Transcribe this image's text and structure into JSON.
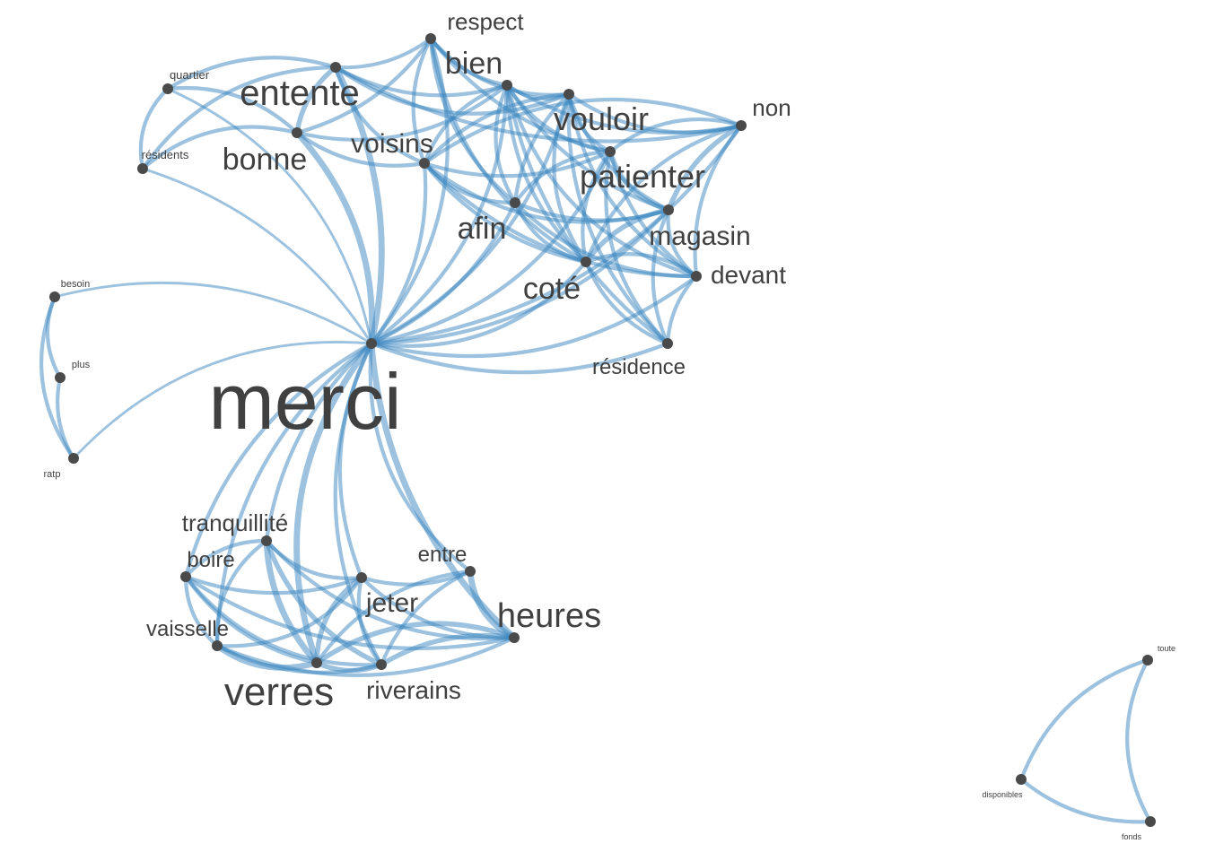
{
  "colors": {
    "edge": "#3a86c0",
    "node": "#4a4a4a",
    "label": "#404040",
    "background": "#ffffff"
  },
  "graph": {
    "nodes": [
      {
        "id": "merci",
        "label": "merci"
      },
      {
        "id": "respect",
        "label": "respect"
      },
      {
        "id": "bien",
        "label": "bien"
      },
      {
        "id": "entente",
        "label": "entente"
      },
      {
        "id": "quartier",
        "label": "quartier"
      },
      {
        "id": "vouloir",
        "label": "vouloir"
      },
      {
        "id": "non",
        "label": "non"
      },
      {
        "id": "bonne",
        "label": "bonne"
      },
      {
        "id": "voisins",
        "label": "voisins"
      },
      {
        "id": "residents",
        "label": "résidents"
      },
      {
        "id": "patienter",
        "label": "patienter"
      },
      {
        "id": "afin",
        "label": "afin"
      },
      {
        "id": "magasin",
        "label": "magasin"
      },
      {
        "id": "devant",
        "label": "devant"
      },
      {
        "id": "cote",
        "label": "coté"
      },
      {
        "id": "residence",
        "label": "résidence"
      },
      {
        "id": "besoin",
        "label": "besoin"
      },
      {
        "id": "plus",
        "label": "plus"
      },
      {
        "id": "ratp",
        "label": "ratp"
      },
      {
        "id": "tranquillite",
        "label": "tranquillité"
      },
      {
        "id": "boire",
        "label": "boire"
      },
      {
        "id": "entre",
        "label": "entre"
      },
      {
        "id": "jeter",
        "label": "jeter"
      },
      {
        "id": "heures",
        "label": "heures"
      },
      {
        "id": "vaisselle",
        "label": "vaisselle"
      },
      {
        "id": "verres",
        "label": "verres"
      },
      {
        "id": "riverains",
        "label": "riverains"
      },
      {
        "id": "toute",
        "label": "toute"
      },
      {
        "id": "disponibles",
        "label": "disponibles"
      },
      {
        "id": "fonds",
        "label": "fonds"
      }
    ],
    "edges": [
      {
        "source": "merci",
        "target": "entente",
        "weight": 4
      },
      {
        "source": "merci",
        "target": "bonne",
        "weight": 4
      },
      {
        "source": "merci",
        "target": "bien",
        "weight": 2
      },
      {
        "source": "merci",
        "target": "respect",
        "weight": 2
      },
      {
        "source": "merci",
        "target": "voisins",
        "weight": 2
      },
      {
        "source": "merci",
        "target": "vouloir",
        "weight": 2
      },
      {
        "source": "merci",
        "target": "patienter",
        "weight": 2
      },
      {
        "source": "merci",
        "target": "afin",
        "weight": 2
      },
      {
        "source": "merci",
        "target": "magasin",
        "weight": 2
      },
      {
        "source": "merci",
        "target": "devant",
        "weight": 2
      },
      {
        "source": "merci",
        "target": "cote",
        "weight": 2
      },
      {
        "source": "merci",
        "target": "residence",
        "weight": 2
      },
      {
        "source": "merci",
        "target": "non",
        "weight": 2
      },
      {
        "source": "merci",
        "target": "quartier",
        "weight": 1
      },
      {
        "source": "merci",
        "target": "residents",
        "weight": 1
      },
      {
        "source": "merci",
        "target": "besoin",
        "weight": 1
      },
      {
        "source": "merci",
        "target": "ratp",
        "weight": 1
      },
      {
        "source": "merci",
        "target": "verres",
        "weight": 4
      },
      {
        "source": "merci",
        "target": "heures",
        "weight": 4
      },
      {
        "source": "merci",
        "target": "jeter",
        "weight": 2
      },
      {
        "source": "merci",
        "target": "riverains",
        "weight": 2
      },
      {
        "source": "merci",
        "target": "tranquillite",
        "weight": 2
      },
      {
        "source": "merci",
        "target": "boire",
        "weight": 2
      },
      {
        "source": "merci",
        "target": "vaisselle",
        "weight": 2
      },
      {
        "source": "merci",
        "target": "entre",
        "weight": 2
      },
      {
        "source": "entente",
        "target": "bonne",
        "weight": 3
      },
      {
        "source": "entente",
        "target": "quartier",
        "weight": 2
      },
      {
        "source": "entente",
        "target": "residents",
        "weight": 2
      },
      {
        "source": "entente",
        "target": "respect",
        "weight": 2
      },
      {
        "source": "entente",
        "target": "bien",
        "weight": 2
      },
      {
        "source": "entente",
        "target": "voisins",
        "weight": 2
      },
      {
        "source": "entente",
        "target": "vouloir",
        "weight": 2
      },
      {
        "source": "entente",
        "target": "non",
        "weight": 2
      },
      {
        "source": "bonne",
        "target": "quartier",
        "weight": 2
      },
      {
        "source": "bonne",
        "target": "residents",
        "weight": 2
      },
      {
        "source": "bonne",
        "target": "respect",
        "weight": 2
      },
      {
        "source": "bonne",
        "target": "voisins",
        "weight": 2
      },
      {
        "source": "bonne",
        "target": "bien",
        "weight": 2
      },
      {
        "source": "quartier",
        "target": "residents",
        "weight": 2
      },
      {
        "source": "respect",
        "target": "bien",
        "weight": 2
      },
      {
        "source": "respect",
        "target": "voisins",
        "weight": 2
      },
      {
        "source": "respect",
        "target": "vouloir",
        "weight": 2
      },
      {
        "source": "respect",
        "target": "patienter",
        "weight": 2
      },
      {
        "source": "respect",
        "target": "afin",
        "weight": 2
      },
      {
        "source": "respect",
        "target": "cote",
        "weight": 2
      },
      {
        "source": "bien",
        "target": "vouloir",
        "weight": 2
      },
      {
        "source": "bien",
        "target": "non",
        "weight": 2
      },
      {
        "source": "bien",
        "target": "patienter",
        "weight": 2
      },
      {
        "source": "bien",
        "target": "afin",
        "weight": 2
      },
      {
        "source": "bien",
        "target": "magasin",
        "weight": 2
      },
      {
        "source": "bien",
        "target": "cote",
        "weight": 2
      },
      {
        "source": "bien",
        "target": "voisins",
        "weight": 2
      },
      {
        "source": "bien",
        "target": "devant",
        "weight": 2
      },
      {
        "source": "bien",
        "target": "residence",
        "weight": 2
      },
      {
        "source": "vouloir",
        "target": "non",
        "weight": 2
      },
      {
        "source": "vouloir",
        "target": "patienter",
        "weight": 2
      },
      {
        "source": "vouloir",
        "target": "afin",
        "weight": 2
      },
      {
        "source": "vouloir",
        "target": "magasin",
        "weight": 2
      },
      {
        "source": "vouloir",
        "target": "devant",
        "weight": 2
      },
      {
        "source": "vouloir",
        "target": "cote",
        "weight": 2
      },
      {
        "source": "vouloir",
        "target": "voisins",
        "weight": 2
      },
      {
        "source": "vouloir",
        "target": "residence",
        "weight": 2
      },
      {
        "source": "non",
        "target": "patienter",
        "weight": 2
      },
      {
        "source": "non",
        "target": "magasin",
        "weight": 3
      },
      {
        "source": "non",
        "target": "devant",
        "weight": 2
      },
      {
        "source": "non",
        "target": "cote",
        "weight": 2
      },
      {
        "source": "non",
        "target": "voisins",
        "weight": 2
      },
      {
        "source": "voisins",
        "target": "patienter",
        "weight": 2
      },
      {
        "source": "voisins",
        "target": "afin",
        "weight": 2
      },
      {
        "source": "voisins",
        "target": "magasin",
        "weight": 2
      },
      {
        "source": "voisins",
        "target": "cote",
        "weight": 2
      },
      {
        "source": "voisins",
        "target": "devant",
        "weight": 2
      },
      {
        "source": "patienter",
        "target": "afin",
        "weight": 2
      },
      {
        "source": "patienter",
        "target": "magasin",
        "weight": 3
      },
      {
        "source": "patienter",
        "target": "devant",
        "weight": 2
      },
      {
        "source": "patienter",
        "target": "cote",
        "weight": 2
      },
      {
        "source": "patienter",
        "target": "residence",
        "weight": 2
      },
      {
        "source": "afin",
        "target": "magasin",
        "weight": 2
      },
      {
        "source": "afin",
        "target": "devant",
        "weight": 2
      },
      {
        "source": "afin",
        "target": "cote",
        "weight": 2
      },
      {
        "source": "magasin",
        "target": "devant",
        "weight": 2
      },
      {
        "source": "magasin",
        "target": "cote",
        "weight": 3
      },
      {
        "source": "magasin",
        "target": "residence",
        "weight": 2
      },
      {
        "source": "devant",
        "target": "cote",
        "weight": 2
      },
      {
        "source": "devant",
        "target": "residence",
        "weight": 2
      },
      {
        "source": "cote",
        "target": "residence",
        "weight": 2
      },
      {
        "source": "besoin",
        "target": "plus",
        "weight": 2
      },
      {
        "source": "besoin",
        "target": "ratp",
        "weight": 2
      },
      {
        "source": "plus",
        "target": "ratp",
        "weight": 2
      },
      {
        "source": "tranquillite",
        "target": "boire",
        "weight": 2
      },
      {
        "source": "tranquillite",
        "target": "jeter",
        "weight": 2
      },
      {
        "source": "tranquillite",
        "target": "verres",
        "weight": 4
      },
      {
        "source": "tranquillite",
        "target": "riverains",
        "weight": 3
      },
      {
        "source": "tranquillite",
        "target": "heures",
        "weight": 2
      },
      {
        "source": "tranquillite",
        "target": "vaisselle",
        "weight": 2
      },
      {
        "source": "boire",
        "target": "verres",
        "weight": 2
      },
      {
        "source": "boire",
        "target": "vaisselle",
        "weight": 2
      },
      {
        "source": "boire",
        "target": "riverains",
        "weight": 2
      },
      {
        "source": "boire",
        "target": "jeter",
        "weight": 2
      },
      {
        "source": "boire",
        "target": "heures",
        "weight": 2
      },
      {
        "source": "vaisselle",
        "target": "verres",
        "weight": 4
      },
      {
        "source": "vaisselle",
        "target": "jeter",
        "weight": 2
      },
      {
        "source": "vaisselle",
        "target": "riverains",
        "weight": 2
      },
      {
        "source": "vaisselle",
        "target": "heures",
        "weight": 2
      },
      {
        "source": "jeter",
        "target": "verres",
        "weight": 3
      },
      {
        "source": "jeter",
        "target": "entre",
        "weight": 2
      },
      {
        "source": "jeter",
        "target": "heures",
        "weight": 2
      },
      {
        "source": "jeter",
        "target": "riverains",
        "weight": 2
      },
      {
        "source": "entre",
        "target": "heures",
        "weight": 4
      },
      {
        "source": "entre",
        "target": "riverains",
        "weight": 2
      },
      {
        "source": "entre",
        "target": "verres",
        "weight": 2
      },
      {
        "source": "heures",
        "target": "verres",
        "weight": 3
      },
      {
        "source": "heures",
        "target": "riverains",
        "weight": 3
      },
      {
        "source": "verres",
        "target": "riverains",
        "weight": 3
      },
      {
        "source": "toute",
        "target": "disponibles",
        "weight": 2
      },
      {
        "source": "toute",
        "target": "fonds",
        "weight": 2
      },
      {
        "source": "disponibles",
        "target": "fonds",
        "weight": 2
      }
    ]
  }
}
